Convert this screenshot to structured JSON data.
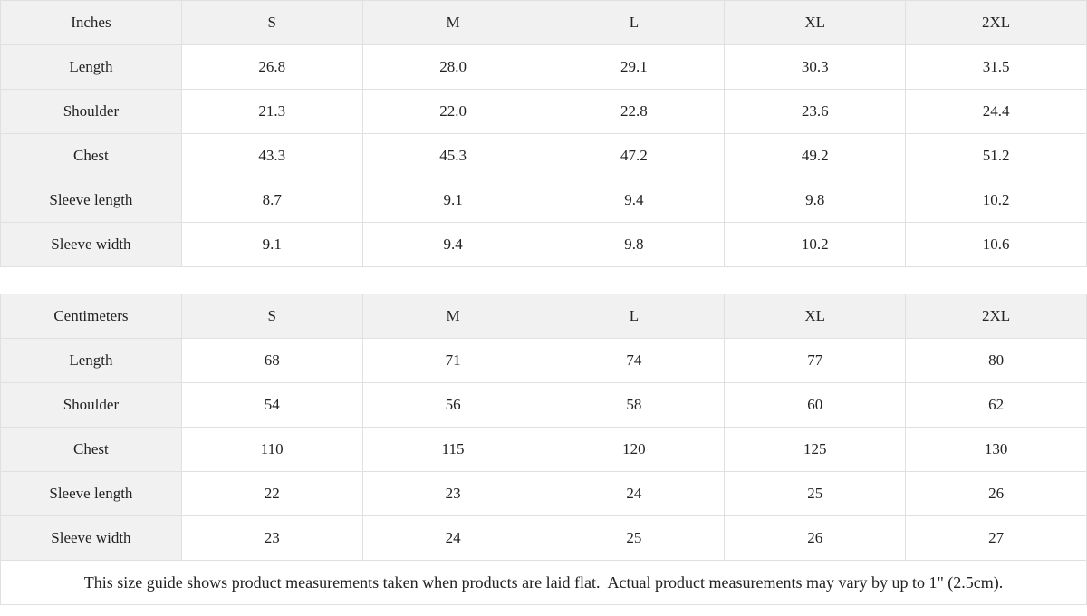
{
  "chart_data": [
    {
      "type": "table",
      "title": "Inches",
      "columns": [
        "Inches",
        "S",
        "M",
        "L",
        "XL",
        "2XL"
      ],
      "rows": [
        [
          "Length",
          "26.8",
          "28.0",
          "29.1",
          "30.3",
          "31.5"
        ],
        [
          "Shoulder",
          "21.3",
          "22.0",
          "22.8",
          "23.6",
          "24.4"
        ],
        [
          "Chest",
          "43.3",
          "45.3",
          "47.2",
          "49.2",
          "51.2"
        ],
        [
          "Sleeve length",
          "8.7",
          "9.1",
          "9.4",
          "9.8",
          "10.2"
        ],
        [
          "Sleeve width",
          "9.1",
          "9.4",
          "9.8",
          "10.2",
          "10.6"
        ]
      ]
    },
    {
      "type": "table",
      "title": "Centimeters",
      "columns": [
        "Centimeters",
        "S",
        "M",
        "L",
        "XL",
        "2XL"
      ],
      "rows": [
        [
          "Length",
          "68",
          "71",
          "74",
          "77",
          "80"
        ],
        [
          "Shoulder",
          "54",
          "56",
          "58",
          "60",
          "62"
        ],
        [
          "Chest",
          "110",
          "115",
          "120",
          "125",
          "130"
        ],
        [
          "Sleeve length",
          "22",
          "23",
          "24",
          "25",
          "26"
        ],
        [
          "Sleeve width",
          "23",
          "24",
          "25",
          "26",
          "27"
        ]
      ]
    }
  ],
  "footer": {
    "note": "This size guide shows product measurements taken when products are laid flat.  Actual product measurements may vary by up to 1\" (2.5cm)."
  },
  "colors": {
    "header_bg": "#f1f1f1",
    "border": "#e0e0e0",
    "text": "#222222"
  }
}
